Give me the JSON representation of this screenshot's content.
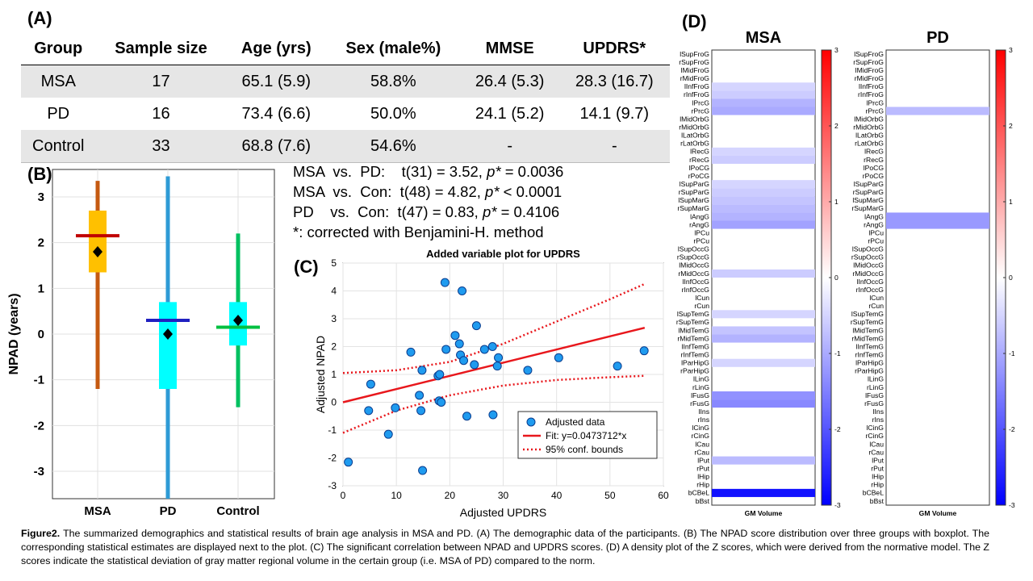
{
  "panels": {
    "a": "(A)",
    "b": "(B)",
    "c": "(C)",
    "d": "(D)"
  },
  "table": {
    "headers": [
      "Group",
      "Sample size",
      "Age (yrs)",
      "Sex (male%)",
      "MMSE",
      "UPDRS*"
    ],
    "rows": [
      [
        "MSA",
        "17",
        "65.1 (5.9)",
        "58.8%",
        "26.4 (5.3)",
        "28.3 (16.7)"
      ],
      [
        "PD",
        "16",
        "73.4 (6.6)",
        "50.0%",
        "24.1 (5.2)",
        "14.1 (9.7)"
      ],
      [
        "Control",
        "33",
        "68.8 (7.6)",
        "54.6%",
        "-",
        "-"
      ]
    ]
  },
  "stats": {
    "lines": [
      {
        "text": "MSA  vs.  PD:    t(31) = 3.52, ",
        "p": "p*",
        "rest": " = 0.0036"
      },
      {
        "text": "MSA  vs.  Con:  t(48) = 4.82, ",
        "p": "p*",
        "rest": " < 0.0001"
      },
      {
        "text": "PD    vs.  Con:  t(47) = 0.83, ",
        "p": "p*",
        "rest": " = 0.4106"
      }
    ],
    "note": "*: corrected with Benjamini-H. method"
  },
  "chart_data": [
    {
      "type": "box",
      "ylabel": "NPAD (years)",
      "ylim": [
        -3.6,
        3.6
      ],
      "yticks": [
        -3,
        -2,
        -1,
        0,
        1,
        2,
        3
      ],
      "grid": true,
      "categories": [
        "MSA",
        "PD",
        "Control"
      ],
      "colors": {
        "MSA": "#ffc000",
        "PD": "#00ffff",
        "Control": "#00ffff"
      },
      "whisker_colors": {
        "MSA": "#c55a11",
        "PD": "#2e9bd6",
        "Control": "#00c060"
      },
      "median_colors": {
        "MSA": "#c00000",
        "PD": "#2020c0",
        "Control": "#00c040"
      },
      "boxes": [
        {
          "name": "MSA",
          "whisker_low": -1.2,
          "q1": 1.35,
          "median": 2.15,
          "q3": 2.7,
          "whisker_high": 3.35,
          "mean": 1.8
        },
        {
          "name": "PD",
          "whisker_low": -3.6,
          "q1": -1.2,
          "median": 0.3,
          "q3": 0.7,
          "whisker_high": 3.45,
          "mean": 0.0
        },
        {
          "name": "Control",
          "whisker_low": -1.6,
          "q1": -0.25,
          "median": 0.15,
          "q3": 0.7,
          "whisker_high": 2.2,
          "mean": 0.3
        }
      ]
    },
    {
      "type": "scatter",
      "title": "Added variable plot for UPDRS",
      "xlabel": "Adjusted UPDRS",
      "ylabel": "Adjusted NPAD",
      "xlim": [
        0,
        60
      ],
      "ylim": [
        -3,
        5
      ],
      "xticks": [
        0,
        10,
        20,
        30,
        40,
        50,
        60
      ],
      "yticks": [
        -3,
        -2,
        -1,
        0,
        1,
        2,
        3,
        4,
        5
      ],
      "grid": true,
      "points": [
        [
          1,
          -2.15
        ],
        [
          4.8,
          -0.3
        ],
        [
          5.2,
          0.65
        ],
        [
          8.5,
          -1.15
        ],
        [
          9.8,
          -0.2
        ],
        [
          12.7,
          1.8
        ],
        [
          14.3,
          0.25
        ],
        [
          14.6,
          -0.3
        ],
        [
          14.8,
          1.15
        ],
        [
          14.9,
          -2.45
        ],
        [
          17.8,
          0.95
        ],
        [
          18.0,
          0.05
        ],
        [
          18.1,
          1.0
        ],
        [
          18.4,
          0.0
        ],
        [
          19.1,
          4.3
        ],
        [
          19.3,
          1.9
        ],
        [
          21.0,
          2.4
        ],
        [
          21.8,
          2.1
        ],
        [
          22.0,
          1.7
        ],
        [
          22.3,
          4.0
        ],
        [
          22.6,
          1.5
        ],
        [
          23.2,
          -0.5
        ],
        [
          24.6,
          1.35
        ],
        [
          25.0,
          2.75
        ],
        [
          26.5,
          1.9
        ],
        [
          28.0,
          2.0
        ],
        [
          28.1,
          -0.45
        ],
        [
          28.9,
          1.3
        ],
        [
          29.1,
          1.6
        ],
        [
          34.6,
          1.15
        ],
        [
          40.4,
          1.6
        ],
        [
          51.4,
          1.3
        ],
        [
          56.4,
          1.85
        ]
      ],
      "fit_slope": 0.0473712,
      "fit_color": "#e8171c",
      "conf_lower": [
        [
          0,
          -1.1
        ],
        [
          10,
          -0.3
        ],
        [
          20,
          0.25
        ],
        [
          30,
          0.6
        ],
        [
          40,
          0.8
        ],
        [
          50,
          0.9
        ],
        [
          56.5,
          0.95
        ]
      ],
      "conf_upper": [
        [
          0,
          1.05
        ],
        [
          10,
          1.15
        ],
        [
          20,
          1.45
        ],
        [
          30,
          2.1
        ],
        [
          40,
          2.9
        ],
        [
          50,
          3.7
        ],
        [
          56.5,
          4.25
        ]
      ],
      "legend": [
        "Adjusted data",
        "Fit: y=0.0473712*x",
        "95% conf. bounds"
      ],
      "legend_position": "bottom-right"
    },
    {
      "type": "heatmap",
      "title": "MSA",
      "xlabel": "GM Volume",
      "regions": [
        "lSupFroG",
        "rSupFroG",
        "lMidFroG",
        "rMidFroG",
        "lInfFroG",
        "rInfFroG",
        "lPrcG",
        "rPrcG",
        "lMidOrbG",
        "rMidOrbG",
        "lLatOrbG",
        "rLatOrbG",
        "lRecG",
        "rRecG",
        "lPoCG",
        "rPoCG",
        "lSupParG",
        "rSupParG",
        "lSupMarG",
        "rSupMarG",
        "lAngG",
        "rAngG",
        "lPCu",
        "rPCu",
        "lSupOccG",
        "rSupOccG",
        "lMidOccG",
        "rMidOccG",
        "lInfOccG",
        "rInfOccG",
        "lCun",
        "rCun",
        "lSupTemG",
        "rSupTemG",
        "lMidTemG",
        "rMidTemG",
        "lInfTemG",
        "rInfTemG",
        "lParHipG",
        "rParHipG",
        "lLinG",
        "rLinG",
        "lFusG",
        "rFusG",
        "lIns",
        "rIns",
        "lCinG",
        "rCinG",
        "lCau",
        "rCau",
        "lPut",
        "rPut",
        "lHip",
        "rHip",
        "bCBeL",
        "bBst"
      ],
      "values": [
        0,
        0,
        0,
        0,
        -0.5,
        -0.6,
        -0.9,
        -1.0,
        0,
        0,
        0,
        0,
        -0.5,
        -0.6,
        0,
        0,
        -0.5,
        -0.6,
        -0.7,
        -0.8,
        -0.9,
        -1.1,
        0,
        0,
        0,
        0,
        0,
        -0.6,
        0,
        0,
        0,
        0,
        -0.5,
        0,
        -0.7,
        -0.9,
        0,
        0,
        -0.5,
        0,
        0,
        0,
        -1.3,
        -1.4,
        0,
        0,
        0,
        0,
        0,
        0,
        -0.8,
        0,
        0,
        0,
        -2.8,
        0
      ],
      "colorbar": {
        "min": -3,
        "max": 3,
        "ticks": [
          3,
          2,
          1,
          0,
          -1,
          -2,
          -3
        ]
      }
    },
    {
      "type": "heatmap",
      "title": "PD",
      "xlabel": "GM Volume",
      "regions": [
        "lSupFroG",
        "rSupFroG",
        "lMidFroG",
        "rMidFroG",
        "lInfFroG",
        "rInfFroG",
        "lPrcG",
        "rPrcG",
        "lMidOrbG",
        "rMidOrbG",
        "lLatOrbG",
        "rLatOrbG",
        "lRecG",
        "rRecG",
        "lPoCG",
        "rPoCG",
        "lSupParG",
        "rSupParG",
        "lSupMarG",
        "rSupMarG",
        "lAngG",
        "rAngG",
        "lPCu",
        "rPCu",
        "lSupOccG",
        "rSupOccG",
        "lMidOccG",
        "rMidOccG",
        "lInfOccG",
        "rInfOccG",
        "lCun",
        "rCun",
        "lSupTemG",
        "rSupTemG",
        "lMidTemG",
        "rMidTemG",
        "lInfTemG",
        "rInfTemG",
        "lParHipG",
        "rParHipG",
        "lLinG",
        "rLinG",
        "lFusG",
        "rFusG",
        "lIns",
        "rIns",
        "lCinG",
        "rCinG",
        "lCau",
        "rCau",
        "lPut",
        "rPut",
        "lHip",
        "rHip",
        "bCBeL",
        "bBst"
      ],
      "values": [
        0,
        0,
        0,
        0,
        0,
        0,
        0,
        -0.8,
        0,
        0,
        0,
        0,
        0,
        0,
        0,
        0,
        0,
        0,
        0,
        0,
        -1.2,
        -1.2,
        0,
        0,
        0,
        0,
        0,
        0,
        0,
        0,
        0,
        0,
        0,
        0,
        0,
        0,
        0,
        0,
        0,
        0,
        0,
        0,
        0,
        0,
        0,
        0,
        0,
        0,
        0,
        0,
        0,
        0,
        0,
        0,
        0,
        0
      ],
      "colorbar": {
        "min": -3,
        "max": 3,
        "ticks": [
          3,
          2,
          1,
          0,
          -1,
          -2,
          -3
        ]
      }
    }
  ],
  "caption": {
    "bold": "Figure2.",
    "text": " The summarized demographics and statistical results of brain age analysis in MSA and PD. (A) The demographic data of the participants. (B) The NPAD score distribution over three groups with boxplot. The corresponding statistical estimates are displayed next to the plot. (C) The significant correlation between NPAD and UPDRS scores. (D) A density plot of the Z scores, which were derived from the normative model. The Z scores indicate the statistical deviation of gray matter regional volume in the certain group (i.e. MSA of PD) compared to the norm."
  }
}
